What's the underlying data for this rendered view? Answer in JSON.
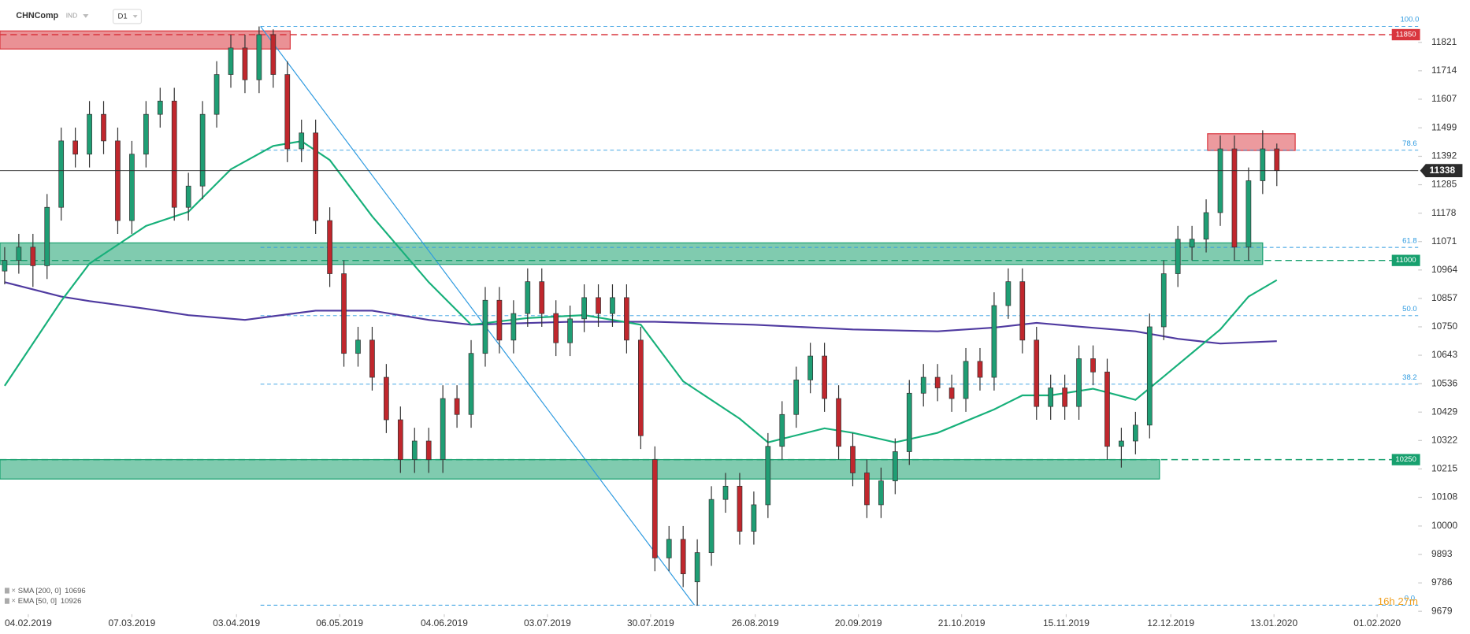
{
  "header": {
    "symbol": "CHNComp",
    "market": "IND",
    "interval": "D1"
  },
  "chart_data": {
    "type": "candlestick",
    "xlim": [
      -0.33,
      100
    ],
    "xticks": [
      {
        "value": 1.67,
        "label": "04.02.2019"
      },
      {
        "value": 9,
        "label": "07.03.2019"
      },
      {
        "value": 16.4,
        "label": "03.04.2019"
      },
      {
        "value": 23.7,
        "label": "06.05.2019"
      },
      {
        "value": 31.1,
        "label": "04.06.2019"
      },
      {
        "value": 38.4,
        "label": "03.07.2019"
      },
      {
        "value": 45.7,
        "label": "30.07.2019"
      },
      {
        "value": 53.1,
        "label": "26.08.2019"
      },
      {
        "value": 60.4,
        "label": "20.09.2019"
      },
      {
        "value": 67.7,
        "label": "21.10.2019"
      },
      {
        "value": 75.1,
        "label": "15.11.2019"
      },
      {
        "value": 82.5,
        "label": "12.12.2019"
      },
      {
        "value": 89.8,
        "label": "13.01.2020"
      },
      {
        "value": 97.1,
        "label": "01.02.2020"
      }
    ],
    "ylim": [
      9668,
      11945
    ],
    "yticks": [
      11821,
      11714,
      11607,
      11499,
      11392,
      11285,
      11178,
      11071,
      10964,
      10857,
      10750,
      10643,
      10536,
      10429,
      10322,
      10215,
      10108,
      10000,
      9893,
      9786,
      9679
    ],
    "candles": {
      "up_color": "#1f9e74",
      "down_color": "#c0272d",
      "open": [
        10960,
        11000,
        11050,
        10980,
        11200,
        11450,
        11400,
        11550,
        11450,
        11150,
        11400,
        11550,
        11600,
        11200,
        11280,
        11550,
        11700,
        11800,
        11680,
        11850,
        11700,
        11420,
        11480,
        11150,
        10950,
        10650,
        10700,
        10560,
        10400,
        10250,
        10320,
        10250,
        10480,
        10420,
        10650,
        10850,
        10700,
        10800,
        10920,
        10800,
        10690,
        10780,
        10860,
        10800,
        10860,
        10700,
        10250,
        9880,
        9950,
        9790,
        9900,
        10100,
        10150,
        9980,
        10080,
        10300,
        10420,
        10550,
        10640,
        10480,
        10300,
        10200,
        10080,
        10170,
        10280,
        10500,
        10560,
        10520,
        10480,
        10620,
        10560,
        10830,
        10920,
        10700,
        10450,
        10520,
        10450,
        10630,
        10580,
        10300,
        10320,
        10380,
        10750,
        10950,
        11050,
        11080,
        11180,
        11420,
        11050,
        11300,
        11420
      ],
      "high": [
        11050,
        11100,
        11100,
        11250,
        11500,
        11500,
        11600,
        11600,
        11500,
        11450,
        11600,
        11650,
        11650,
        11330,
        11600,
        11750,
        11850,
        11850,
        11881,
        11870,
        11750,
        11530,
        11530,
        11200,
        11000,
        10750,
        10750,
        10610,
        10450,
        10370,
        10370,
        10530,
        10530,
        10700,
        10900,
        10900,
        10850,
        10970,
        10970,
        10850,
        10830,
        10910,
        10910,
        10910,
        10910,
        10750,
        10300,
        10000,
        10000,
        9950,
        10150,
        10200,
        10200,
        10130,
        10350,
        10470,
        10600,
        10690,
        10690,
        10530,
        10350,
        10250,
        10220,
        10330,
        10550,
        10610,
        10610,
        10570,
        10670,
        10670,
        10880,
        10970,
        10970,
        10750,
        10570,
        10570,
        10680,
        10680,
        10630,
        10370,
        10430,
        10800,
        11000,
        11130,
        11130,
        11230,
        11470,
        11470,
        11350,
        11490,
        11440
      ],
      "low": [
        10910,
        10950,
        10900,
        10930,
        11150,
        11350,
        11350,
        11400,
        11100,
        11100,
        11350,
        11500,
        11150,
        11150,
        11230,
        11500,
        11650,
        11630,
        11630,
        11650,
        11370,
        11370,
        11100,
        10900,
        10600,
        10600,
        10510,
        10350,
        10200,
        10200,
        10200,
        10200,
        10370,
        10370,
        10600,
        10650,
        10650,
        10750,
        10750,
        10640,
        10640,
        10730,
        10750,
        10750,
        10650,
        10290,
        9830,
        9830,
        9770,
        9700,
        9850,
        10050,
        9930,
        9930,
        10030,
        10250,
        10370,
        10500,
        10430,
        10250,
        10150,
        10030,
        10030,
        10120,
        10230,
        10450,
        10470,
        10430,
        10430,
        10510,
        10510,
        10780,
        10650,
        10400,
        10400,
        10400,
        10400,
        10530,
        10250,
        10220,
        10270,
        10330,
        10700,
        10900,
        11000,
        11030,
        11130,
        11000,
        11000,
        11250,
        11280
      ],
      "close": [
        11000,
        11050,
        10980,
        11200,
        11450,
        11400,
        11550,
        11450,
        11150,
        11400,
        11550,
        11600,
        11200,
        11280,
        11550,
        11700,
        11800,
        11680,
        11850,
        11700,
        11420,
        11480,
        11150,
        10950,
        10650,
        10700,
        10560,
        10400,
        10250,
        10320,
        10250,
        10480,
        10420,
        10650,
        10850,
        10700,
        10800,
        10920,
        10800,
        10690,
        10780,
        10860,
        10800,
        10860,
        10700,
        10340,
        9880,
        9950,
        9820,
        9900,
        10100,
        10150,
        9980,
        10080,
        10300,
        10420,
        10550,
        10640,
        10480,
        10300,
        10200,
        10080,
        10170,
        10280,
        10500,
        10560,
        10520,
        10480,
        10620,
        10560,
        10830,
        10920,
        10700,
        10450,
        10520,
        10450,
        10630,
        10580,
        10300,
        10320,
        10380,
        10750,
        10950,
        11080,
        11080,
        11180,
        11420,
        11050,
        11300,
        11420,
        11338
      ]
    },
    "lines": [
      {
        "name": "SMA [200, 0]",
        "color": "#4f3aa0",
        "x": [
          0,
          4,
          6,
          10,
          13,
          17,
          22,
          26,
          30,
          33,
          40,
          46,
          53,
          60,
          66,
          70,
          73,
          76,
          80,
          83,
          86,
          90
        ],
        "values": [
          10918,
          10864,
          10847,
          10818,
          10794,
          10776,
          10811,
          10811,
          10776,
          10758,
          10769,
          10769,
          10758,
          10740,
          10733,
          10747,
          10765,
          10751,
          10733,
          10705,
          10687,
          10696
        ]
      },
      {
        "name": "EMA [50, 0]",
        "color": "#17b07a",
        "x": [
          0,
          4,
          6,
          10,
          13,
          16,
          19,
          21,
          23,
          26,
          30,
          33,
          37,
          41,
          45,
          48,
          52,
          54,
          58,
          60,
          63,
          66,
          70,
          72,
          74,
          77,
          80,
          82,
          86,
          88,
          90
        ],
        "values": [
          10528,
          10847,
          10988,
          11130,
          11183,
          11343,
          11431,
          11449,
          11378,
          11166,
          10918,
          10758,
          10783,
          10794,
          10758,
          10545,
          10404,
          10315,
          10368,
          10351,
          10315,
          10351,
          10439,
          10492,
          10492,
          10517,
          10475,
          10563,
          10740,
          10864,
          10926
        ]
      }
    ],
    "fibonacci": {
      "color": "#2f9be0",
      "x": [
        18.1,
        48.8
      ],
      "levels": [
        {
          "label": "100.0",
          "value": 11881
        },
        {
          "label": "78.6",
          "value": 11415
        },
        {
          "label": "61.8",
          "value": 11049
        },
        {
          "label": "50.0",
          "value": 10792
        },
        {
          "label": "38.2",
          "value": 10534
        },
        {
          "label": "0.0",
          "value": 9702
        }
      ]
    },
    "levels": [
      {
        "value": 11850,
        "color": "#d9363e",
        "zone": [
          11796,
          11864
        ],
        "x": [
          -0.33,
          20.2
        ]
      },
      {
        "value": 11000,
        "color": "#17a06e",
        "zone": [
          10985,
          11066
        ],
        "x": [
          -0.33,
          89
        ]
      },
      {
        "value": 10250,
        "color": "#17a06e",
        "zone": [
          10177,
          10250
        ],
        "x": [
          -0.33,
          81.7
        ]
      }
    ],
    "zones": [
      {
        "color": "#d9363e",
        "range": [
          11414,
          11477
        ],
        "x": [
          85.1,
          91.3
        ]
      }
    ],
    "last_price": {
      "value": 11338,
      "color": "#2b2b2b"
    },
    "timer": "16h 27m"
  }
}
